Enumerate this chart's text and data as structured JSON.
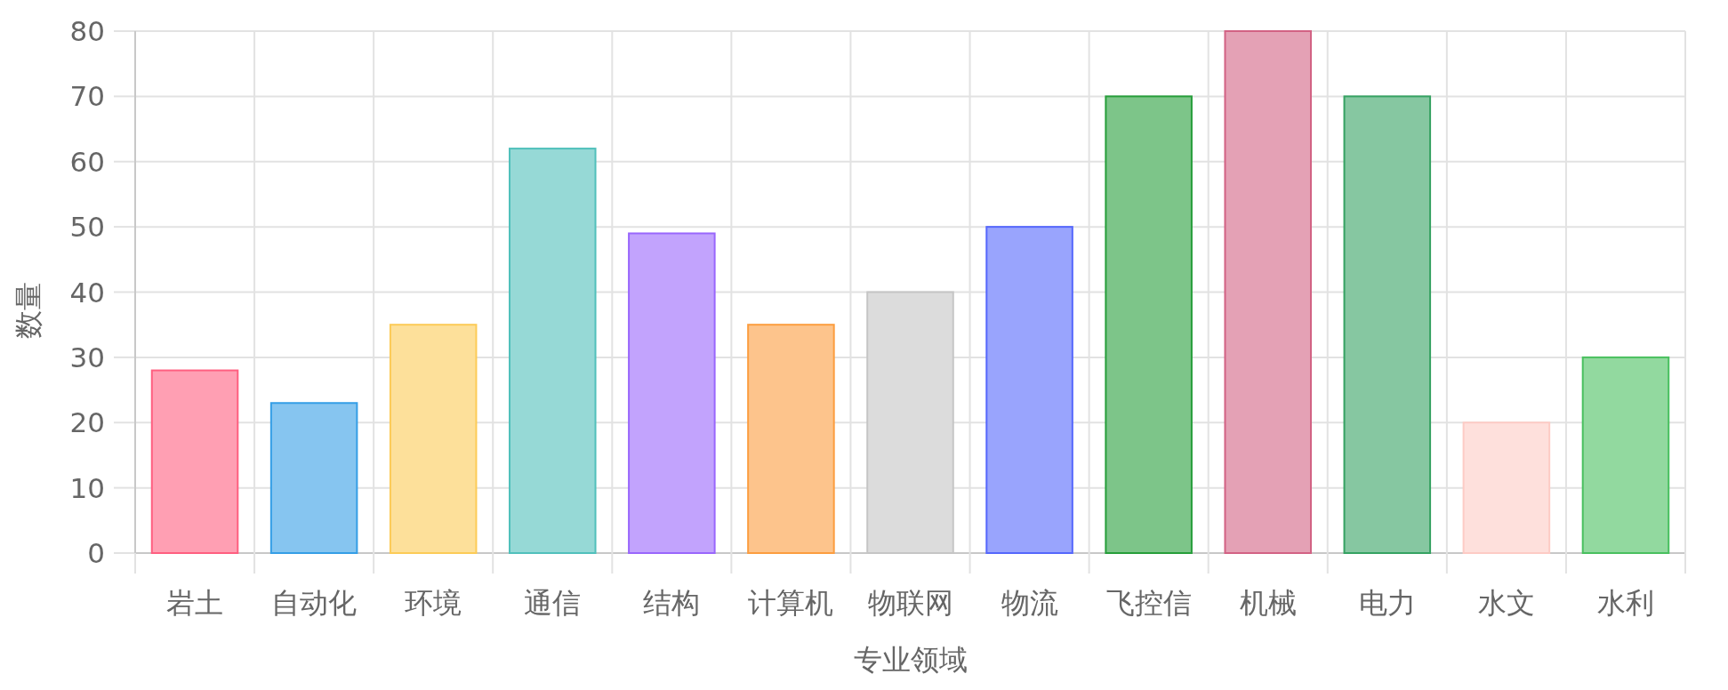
{
  "chart_data": {
    "type": "bar",
    "xlabel": "专业领域",
    "ylabel": "数量",
    "categories": [
      "岩土",
      "自动化",
      "环境",
      "通信",
      "结构",
      "计算机",
      "物联网",
      "物流",
      "飞控信",
      "机械",
      "电力",
      "水文",
      "水利"
    ],
    "values": [
      28,
      23,
      35,
      62,
      49,
      35,
      40,
      50,
      70,
      80,
      70,
      20,
      30
    ],
    "colors": [
      "#ff9fb3",
      "#86c5f0",
      "#fde09a",
      "#96d9d6",
      "#c2a3fd",
      "#fdc48c",
      "#dcdcdc",
      "#99a4fd",
      "#7dc589",
      "#e4a1b5",
      "#86c7a1",
      "#fee0dc",
      "#92d99f"
    ],
    "ylim": [
      0,
      80
    ],
    "yticks": [
      0,
      10,
      20,
      30,
      40,
      50,
      60,
      70,
      80
    ],
    "grid": true
  }
}
